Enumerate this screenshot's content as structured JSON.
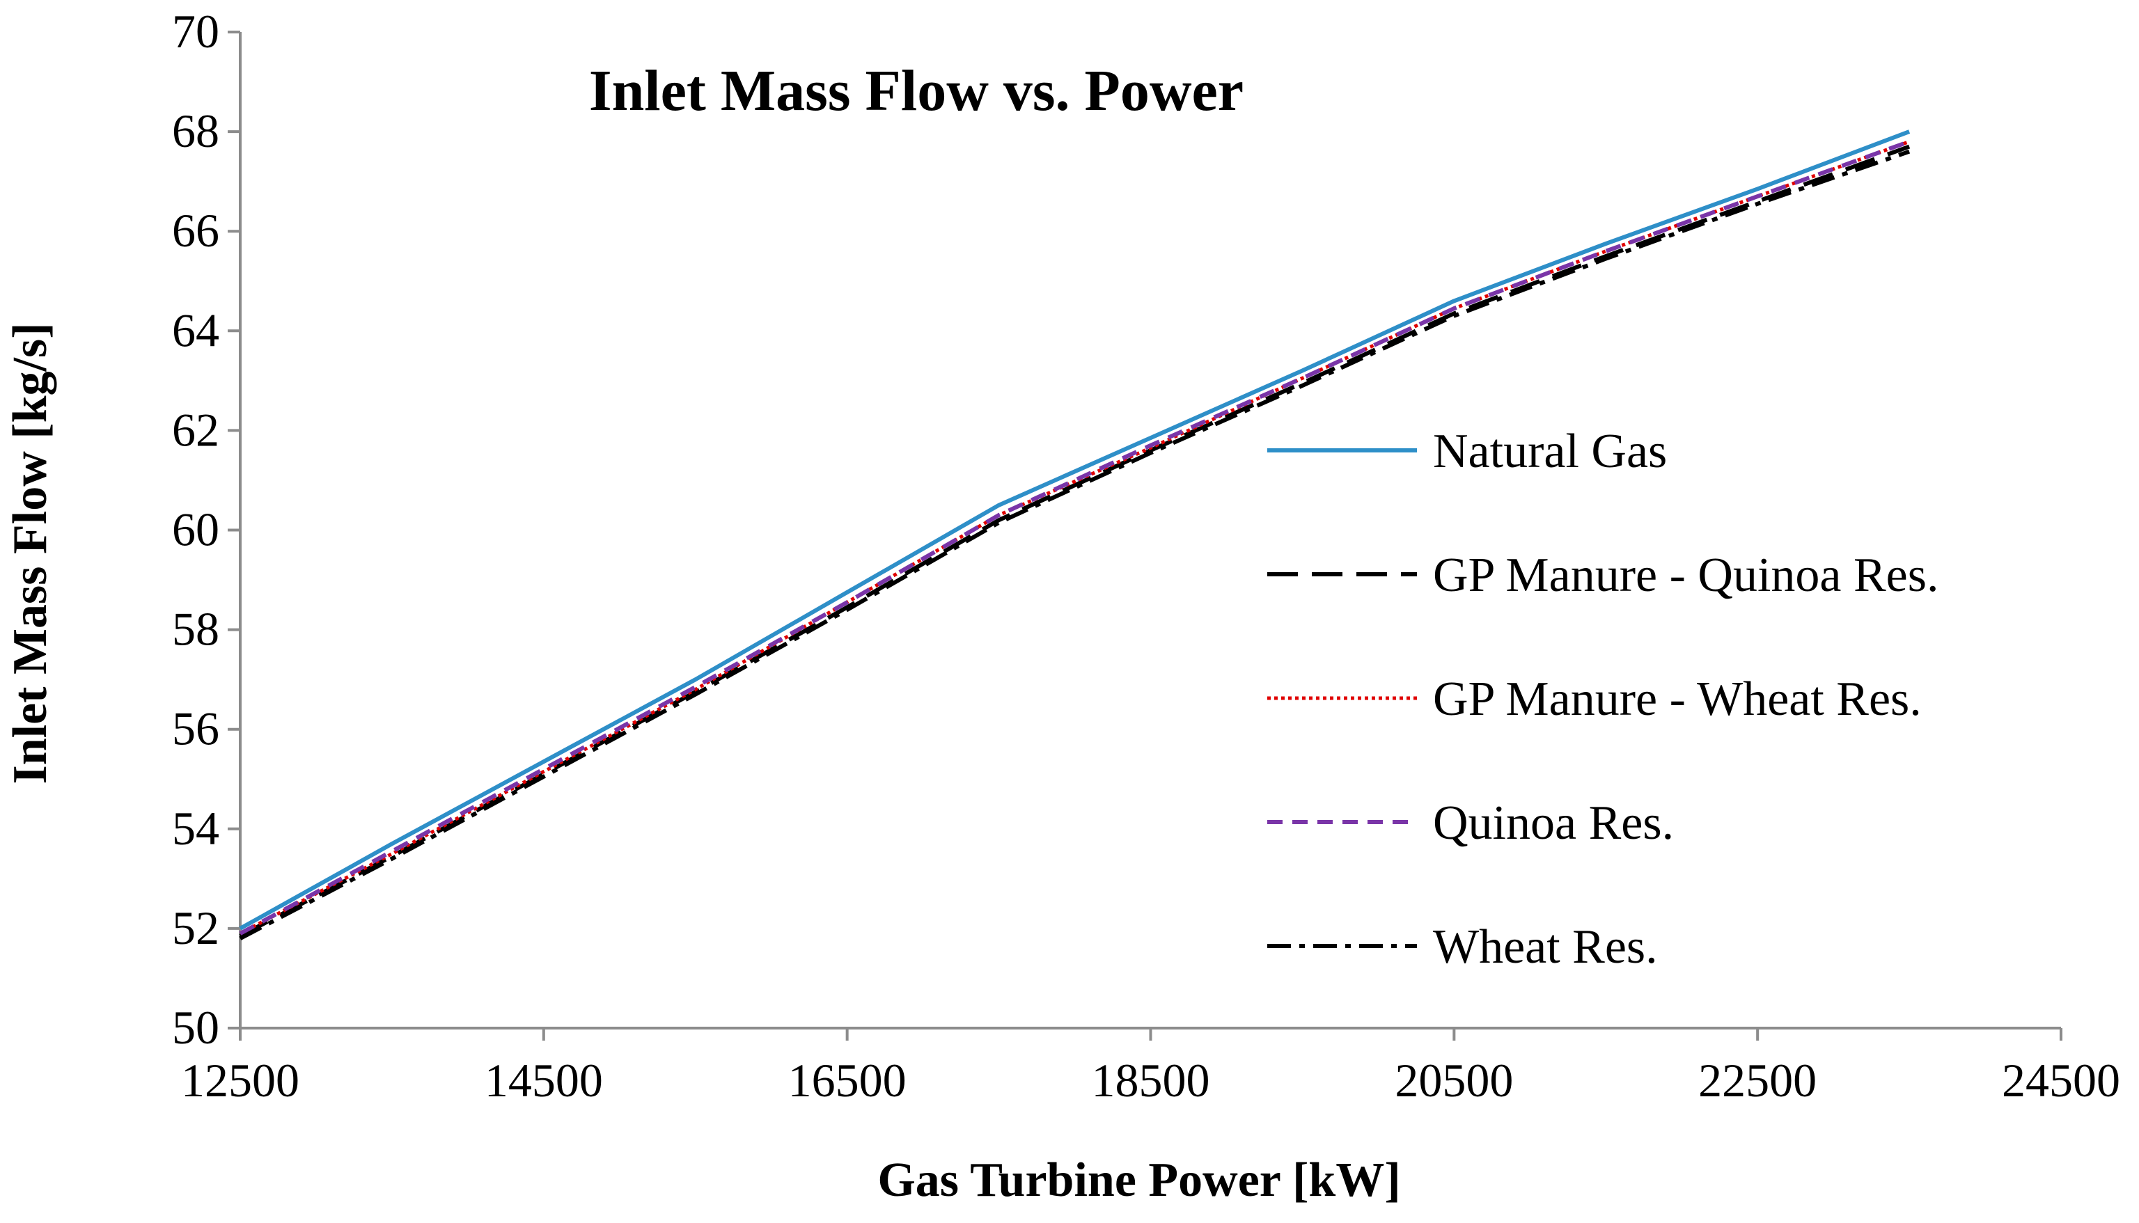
{
  "chart_data": {
    "type": "line",
    "title": "Inlet Mass Flow vs. Power",
    "xlabel": "Gas Turbine Power [kW]",
    "ylabel": "Inlet Mass Flow [kg/s]",
    "xlim": [
      12500,
      24500
    ],
    "ylim": [
      50,
      70
    ],
    "xticks": [
      "12500",
      "14500",
      "16500",
      "18500",
      "20500",
      "22500",
      "24500"
    ],
    "yticks": [
      "50",
      "52",
      "54",
      "56",
      "58",
      "60",
      "62",
      "64",
      "66",
      "68",
      "70"
    ],
    "grid": false,
    "legend_position": "right",
    "x": [
      12500,
      13500,
      14500,
      15500,
      16500,
      17500,
      18500,
      19500,
      20500,
      21500,
      22500,
      23500
    ],
    "series": [
      {
        "name": "Natural Gas",
        "color": "#2e8fc8",
        "style": "solid",
        "values": [
          52.0,
          53.7,
          55.35,
          57.0,
          58.75,
          60.5,
          61.85,
          63.2,
          64.6,
          65.75,
          66.85,
          68.0
        ]
      },
      {
        "name": "GP Manure - Quinoa Res.",
        "color": "#000000",
        "style": "long-dash",
        "values": [
          51.85,
          53.45,
          55.1,
          56.75,
          58.45,
          60.2,
          61.6,
          62.95,
          64.35,
          65.5,
          66.6,
          67.7
        ]
      },
      {
        "name": "GP Manure - Wheat Res.",
        "color": "#e00000",
        "style": "dotted",
        "values": [
          51.9,
          53.5,
          55.15,
          56.8,
          58.55,
          60.3,
          61.65,
          63.05,
          64.45,
          65.6,
          66.7,
          67.8
        ]
      },
      {
        "name": "Quinoa Res.",
        "color": "#7a35a8",
        "style": "dash",
        "values": [
          51.9,
          53.55,
          55.2,
          56.85,
          58.55,
          60.3,
          61.7,
          63.05,
          64.45,
          65.6,
          66.7,
          67.8
        ]
      },
      {
        "name": "Wheat Res.",
        "color": "#000000",
        "style": "dash-dot",
        "values": [
          51.8,
          53.4,
          55.05,
          56.7,
          58.4,
          60.15,
          61.55,
          62.9,
          64.3,
          65.45,
          66.55,
          67.6
        ]
      }
    ]
  }
}
